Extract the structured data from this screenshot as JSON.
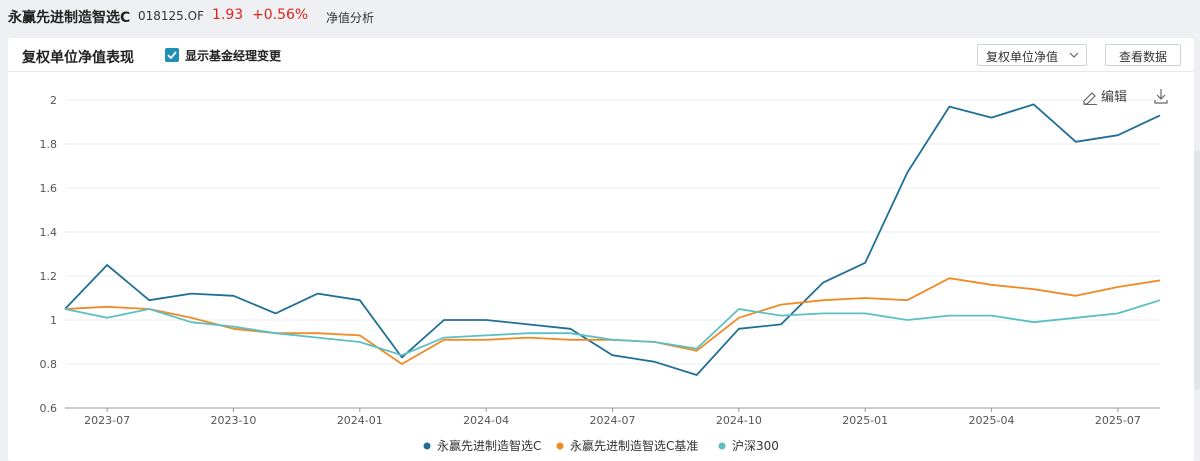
{
  "header": {
    "fund_name": "永赢先进制造智选C",
    "fund_code": "018125.OF",
    "nav": "1.93",
    "change": "+0.56%",
    "tab": "净值分析"
  },
  "panel": {
    "title": "复权单位净值表现",
    "checkbox_label": "显示基金经理变更",
    "select_value": "复权单位净值",
    "view_data_button": "查看数据",
    "edit_label": "编辑"
  },
  "colors": {
    "fund": "#1f6f96",
    "benchmark": "#f08a24",
    "index": "#5bbfc4",
    "accent": "#1f8fb5",
    "up": "#d9261c"
  },
  "chart_data": {
    "type": "line",
    "ylim": [
      0.6,
      2.0
    ],
    "yticks": [
      "0.6",
      "0.8",
      "1",
      "1.2",
      "1.4",
      "1.6",
      "1.8",
      "2"
    ],
    "xticks": [
      "2023-07",
      "2023-10",
      "2024-01",
      "2024-04",
      "2024-07",
      "2024-10",
      "2025-01",
      "2025-04",
      "2025-07"
    ],
    "x": [
      "2023-06",
      "2023-07",
      "2023-08",
      "2023-09",
      "2023-10",
      "2023-11",
      "2023-12",
      "2024-01",
      "2024-02",
      "2024-03",
      "2024-04",
      "2024-05",
      "2024-06",
      "2024-07",
      "2024-08",
      "2024-09",
      "2024-10",
      "2024-11",
      "2024-12",
      "2025-01",
      "2025-02",
      "2025-03",
      "2025-04",
      "2025-05",
      "2025-06",
      "2025-07",
      "2025-08"
    ],
    "series": [
      {
        "name": "永赢先进制造智选C",
        "values": [
          1.05,
          1.25,
          1.09,
          1.12,
          1.11,
          1.03,
          1.12,
          1.09,
          0.83,
          1.0,
          1.0,
          0.98,
          0.96,
          0.84,
          0.81,
          0.75,
          0.96,
          0.98,
          1.17,
          1.26,
          1.67,
          1.97,
          1.92,
          1.98,
          1.81,
          1.84,
          1.93
        ]
      },
      {
        "name": "永赢先进制造智选C基准",
        "values": [
          1.05,
          1.06,
          1.05,
          1.01,
          0.96,
          0.94,
          0.94,
          0.93,
          0.8,
          0.91,
          0.91,
          0.92,
          0.91,
          0.91,
          0.9,
          0.86,
          1.01,
          1.07,
          1.09,
          1.1,
          1.09,
          1.19,
          1.16,
          1.14,
          1.11,
          1.15,
          1.18
        ]
      },
      {
        "name": "沪深300",
        "values": [
          1.05,
          1.01,
          1.05,
          0.99,
          0.97,
          0.94,
          0.92,
          0.9,
          0.84,
          0.92,
          0.93,
          0.94,
          0.94,
          0.91,
          0.9,
          0.87,
          1.05,
          1.02,
          1.03,
          1.03,
          1.0,
          1.02,
          1.02,
          0.99,
          1.01,
          1.03,
          1.09
        ]
      }
    ]
  }
}
